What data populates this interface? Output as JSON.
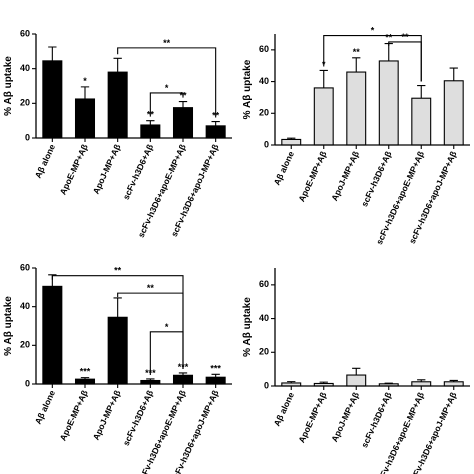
{
  "chart_data": [
    {
      "type": "bar",
      "ylabel": "% Aβ uptake",
      "ylim": [
        0,
        60
      ],
      "yticks": [
        0,
        20,
        40,
        60
      ],
      "bar_color": "#000000",
      "categories": [
        "Aβ alone",
        "ApoE-MP+Aβ",
        "ApoJ-MP+Aβ",
        "scFv-h3D6+Aβ",
        "scFv-h3D6+apoE-MP+Aβ",
        "scFv-h3D6+apoJ-MP+Aβ"
      ],
      "values": [
        44.5,
        22.5,
        38,
        7.5,
        17.5,
        7
      ],
      "errors": [
        8,
        7,
        8,
        2.5,
        3.5,
        2.5
      ],
      "stars": [
        "",
        "*",
        "",
        "**",
        "**",
        "**"
      ],
      "brackets": [
        {
          "from": 2,
          "to": 5,
          "y": 52,
          "label": "**"
        },
        {
          "from": 3,
          "to": 4,
          "y": 26,
          "label": "*"
        }
      ]
    },
    {
      "type": "bar",
      "ylabel": "% Aβ uptake",
      "ylim": [
        0,
        70
      ],
      "yticks": [
        0,
        20,
        40,
        60
      ],
      "bar_color": "#dedede",
      "categories": [
        "Aβ alone",
        "ApoE-MP+Aβ",
        "ApoJ-MP+Aβ",
        "scFv-h3D6+Aβ",
        "scFv-h3D6+apoE-MP+Aβ",
        "scFv-h3D6+apoJ-MP+Aβ"
      ],
      "values": [
        3.5,
        36,
        46,
        53,
        29.5,
        40.5
      ],
      "errors": [
        0.8,
        11,
        9,
        11,
        8,
        8
      ],
      "stars": [
        "",
        "*",
        "**",
        "**",
        "",
        ""
      ],
      "brackets": [
        {
          "from": 1,
          "to": 4,
          "y": 69,
          "label": "*"
        },
        {
          "from": 3,
          "to": 4,
          "y": 65,
          "label": "**"
        }
      ]
    },
    {
      "type": "bar",
      "ylabel": "% Aβ uptake",
      "ylim": [
        0,
        60
      ],
      "yticks": [
        0,
        20,
        40,
        60
      ],
      "bar_color": "#000000",
      "categories": [
        "Aβ alone",
        "ApoE-MP+Aβ",
        "ApoJ-MP+Aβ",
        "scFv-h3D6+Aβ",
        "scFv-h3D6+apoE-MP+Aβ",
        "scFv-h3D6+apoJ-MP+Aβ"
      ],
      "values": [
        50.5,
        2.5,
        34.5,
        1.8,
        4.5,
        3.5
      ],
      "errors": [
        6,
        0.8,
        10,
        0.8,
        1.2,
        1.5
      ],
      "stars": [
        "",
        "***",
        "",
        "***",
        "***",
        "***"
      ],
      "brackets": [
        {
          "from": 0,
          "to": 4,
          "y": 56,
          "label": "**"
        },
        {
          "from": 2,
          "to": 4,
          "y": 47,
          "label": "**"
        },
        {
          "from": 3,
          "to": 4,
          "y": 27,
          "label": "*"
        }
      ]
    },
    {
      "type": "bar",
      "ylabel": "% Aβ uptake",
      "ylim": [
        0,
        70
      ],
      "yticks": [
        0,
        20,
        40,
        60
      ],
      "bar_color": "#dedede",
      "categories": [
        "Aβ alone",
        "ApoE-MP+Aβ",
        "ApoJ-MP+Aβ",
        "scFv-h3D6+Aβ",
        "scFv-h3D6+apoE-MP+Aβ",
        "scFv-h3D6+apoJ-MP+Aβ"
      ],
      "values": [
        1.8,
        1.5,
        6.5,
        1.3,
        2.5,
        2.5
      ],
      "errors": [
        0.8,
        0.8,
        4,
        0.4,
        1.2,
        0.8
      ],
      "stars": [
        "",
        "",
        "",
        "",
        "",
        ""
      ],
      "brackets": []
    }
  ]
}
